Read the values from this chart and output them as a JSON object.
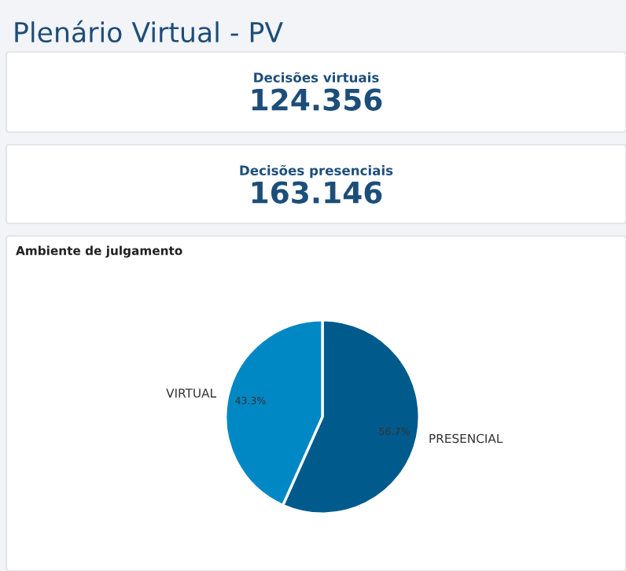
{
  "chart_data": [
    {
      "type": "other",
      "title": "Plenário Virtual - PV",
      "annotations": [
        "Decisões virtuais",
        "124.356",
        "Decisões presenciais",
        "163.146"
      ]
    },
    {
      "type": "pie",
      "title": "Ambiente de julgamento",
      "categories": [
        "PRESENCIAL",
        "VIRTUAL"
      ],
      "values": [
        56.7,
        43.3
      ],
      "colors": [
        "#005a8c",
        "#0088c4"
      ],
      "value_labels": [
        "56.7%",
        "43.3%"
      ],
      "legend": false
    }
  ]
}
